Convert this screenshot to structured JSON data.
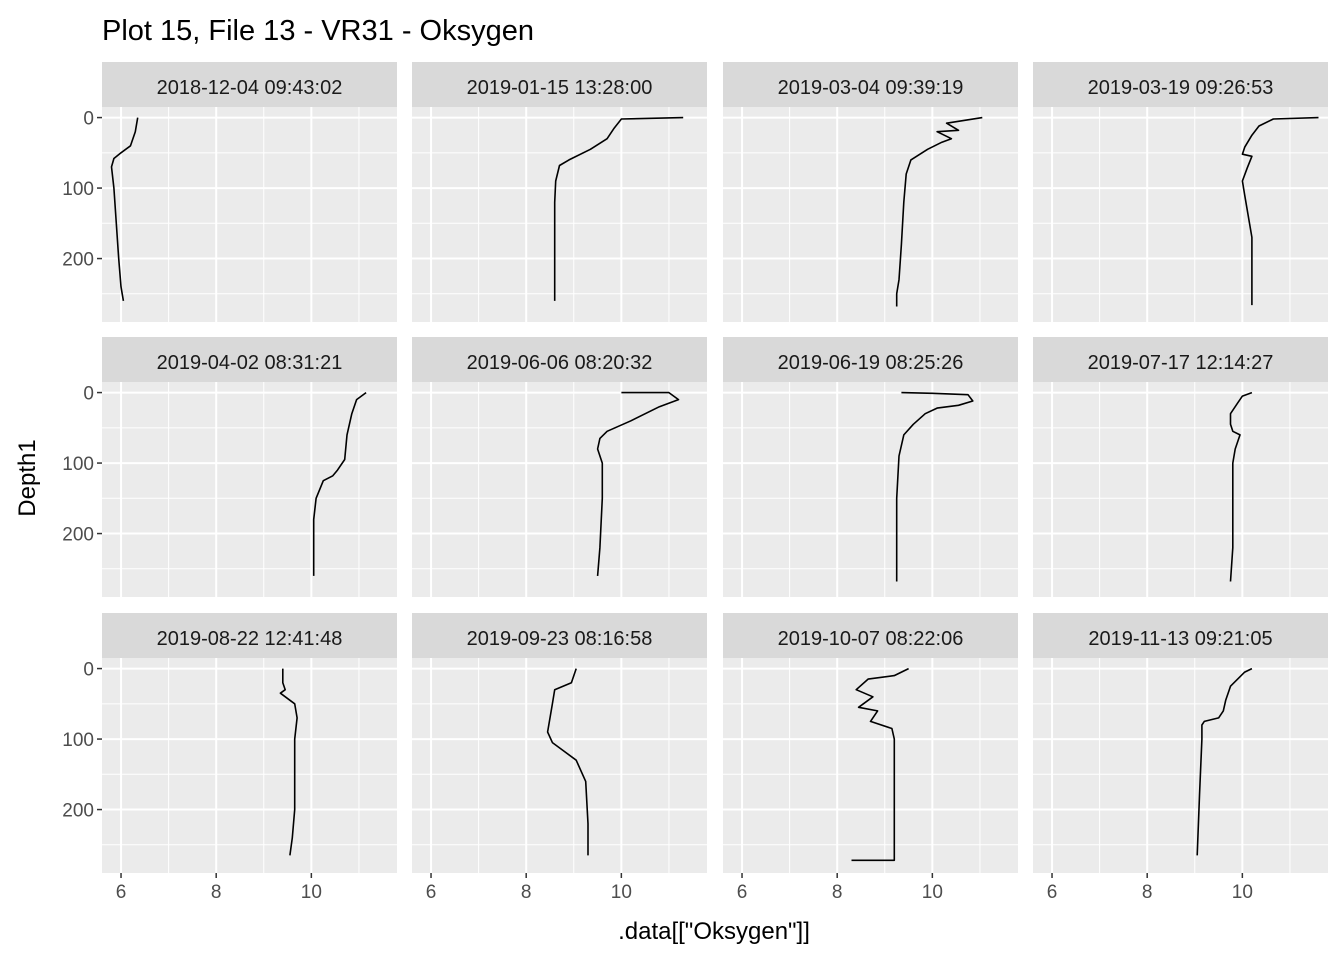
{
  "chart_data": {
    "type": "line",
    "title": "Plot 15, File 13 - VR31  -  Oksygen",
    "xlabel": ".data[[\"Oksygen\"]]",
    "ylabel": "Depth1",
    "xlim": [
      5.6,
      11.8
    ],
    "ylim": [
      -15,
      290
    ],
    "y_reversed": true,
    "x_ticks": [
      6,
      8,
      10
    ],
    "y_ticks": [
      0,
      100,
      200
    ],
    "facet_layout": {
      "rows": 3,
      "cols": 4
    },
    "grid": true,
    "line_color": "#000000",
    "panel_color": "#ebebeb",
    "strip_color": "#d9d9d9",
    "panels": [
      {
        "label": "2018-12-04 09:43:02",
        "x": [
          6.35,
          6.3,
          6.2,
          6.0,
          5.85,
          5.8,
          5.85,
          5.9,
          5.95,
          6.0,
          6.05
        ],
        "y": [
          0,
          20,
          40,
          50,
          58,
          70,
          100,
          150,
          200,
          240,
          260
        ]
      },
      {
        "label": "2019-01-15 13:28:00",
        "x": [
          11.3,
          10.0,
          9.85,
          9.7,
          9.35,
          8.9,
          8.7,
          8.62,
          8.6,
          8.6,
          8.6,
          8.6
        ],
        "y": [
          0,
          2,
          15,
          30,
          45,
          60,
          68,
          90,
          120,
          180,
          240,
          260
        ]
      },
      {
        "label": "2019-03-04 09:39:19",
        "x": [
          11.05,
          10.3,
          10.55,
          10.1,
          10.4,
          10.2,
          9.9,
          9.55,
          9.45,
          9.4,
          9.35,
          9.3,
          9.25,
          9.25
        ],
        "y": [
          0,
          8,
          18,
          20,
          30,
          35,
          45,
          60,
          80,
          120,
          180,
          230,
          250,
          268
        ]
      },
      {
        "label": "2019-03-19 09:26:53",
        "x": [
          11.6,
          10.65,
          10.35,
          10.2,
          10.05,
          10.0,
          10.2,
          10.1,
          10.0,
          10.05,
          10.15,
          10.2,
          10.2,
          10.2,
          10.2
        ],
        "y": [
          0,
          2,
          12,
          25,
          42,
          52,
          55,
          72,
          90,
          110,
          150,
          170,
          200,
          240,
          266
        ]
      },
      {
        "label": "2019-04-02 08:31:21",
        "x": [
          11.15,
          10.95,
          10.85,
          10.75,
          10.7,
          10.55,
          10.45,
          10.25,
          10.1,
          10.05,
          10.05,
          10.05
        ],
        "y": [
          0,
          10,
          30,
          60,
          95,
          110,
          118,
          125,
          150,
          180,
          230,
          260
        ]
      },
      {
        "label": "2019-06-06 08:20:32",
        "x": [
          10.0,
          11.0,
          11.2,
          10.8,
          10.2,
          9.7,
          9.55,
          9.5,
          9.6,
          9.6,
          9.55,
          9.5
        ],
        "y": [
          0,
          0,
          10,
          20,
          40,
          55,
          65,
          80,
          100,
          150,
          220,
          260
        ]
      },
      {
        "label": "2019-06-19 08:25:26",
        "x": [
          9.35,
          10.0,
          10.75,
          10.85,
          10.55,
          10.1,
          9.85,
          9.6,
          9.4,
          9.3,
          9.25,
          9.25,
          9.25
        ],
        "y": [
          0,
          1,
          3,
          12,
          18,
          22,
          30,
          45,
          60,
          90,
          150,
          220,
          268
        ]
      },
      {
        "label": "2019-07-17 12:14:27",
        "x": [
          10.2,
          10.0,
          9.9,
          9.75,
          9.75,
          9.8,
          9.95,
          9.85,
          9.8,
          9.8,
          9.8,
          9.75
        ],
        "y": [
          0,
          5,
          15,
          30,
          45,
          55,
          60,
          80,
          100,
          150,
          220,
          268
        ]
      },
      {
        "label": "2019-08-22 12:41:48",
        "x": [
          9.4,
          9.4,
          9.45,
          9.35,
          9.65,
          9.7,
          9.65,
          9.65,
          9.65,
          9.6,
          9.55
        ],
        "y": [
          0,
          20,
          30,
          35,
          50,
          70,
          100,
          150,
          200,
          240,
          265
        ]
      },
      {
        "label": "2019-09-23 08:16:58",
        "x": [
          9.05,
          8.95,
          8.6,
          8.55,
          8.5,
          8.45,
          8.55,
          8.75,
          9.05,
          9.25,
          9.3,
          9.3
        ],
        "y": [
          0,
          20,
          30,
          50,
          70,
          90,
          105,
          115,
          130,
          160,
          220,
          265
        ]
      },
      {
        "label": "2019-10-07 08:22:06",
        "x": [
          9.5,
          9.2,
          8.65,
          8.4,
          8.75,
          8.45,
          8.85,
          8.7,
          9.15,
          9.2,
          9.2,
          9.2,
          9.2,
          9.2,
          8.3
        ],
        "y": [
          0,
          10,
          15,
          30,
          40,
          55,
          60,
          75,
          85,
          100,
          150,
          220,
          260,
          272,
          272
        ]
      },
      {
        "label": "2019-11-13 09:21:05",
        "x": [
          10.2,
          10.05,
          9.75,
          9.65,
          9.6,
          9.5,
          9.2,
          9.15,
          9.15,
          9.1,
          9.05
        ],
        "y": [
          0,
          5,
          25,
          45,
          60,
          70,
          75,
          80,
          100,
          180,
          265
        ]
      }
    ]
  }
}
